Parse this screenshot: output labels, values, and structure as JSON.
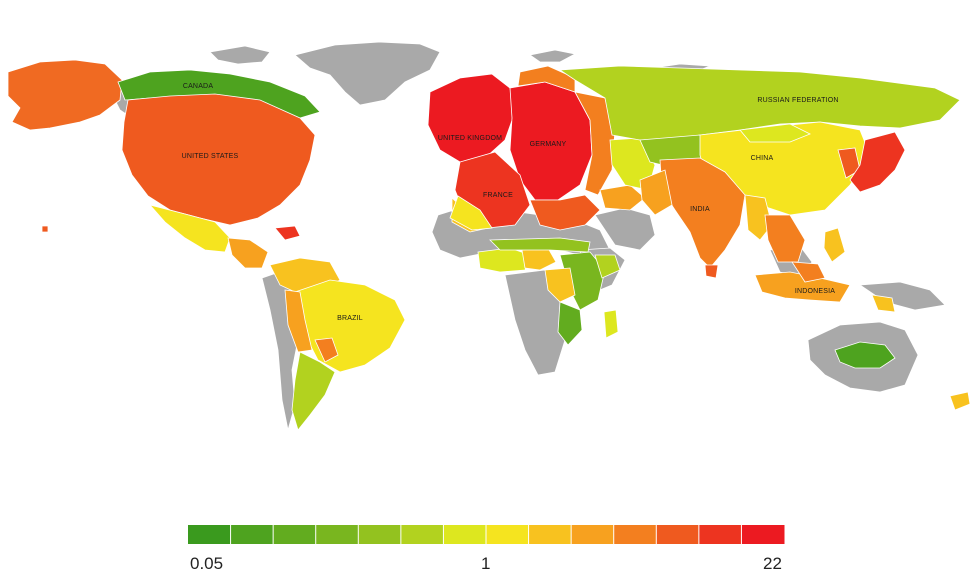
{
  "map": {
    "labels": {
      "canada": "CANADA",
      "united_states": "UNITED STATES",
      "brazil": "BRAZIL",
      "united_kingdom": "UNITED KINGDOM",
      "germany": "GERMANY",
      "france": "FRANCE",
      "russian_federation": "RUSSIAN FEDERATION",
      "china": "CHINA",
      "india": "INDIA",
      "indonesia": "INDONESIA"
    },
    "colors": {
      "no_data": "#a9a9a9",
      "water": "#ffffff"
    }
  },
  "legend": {
    "min_label": "0.05",
    "mid_label": "1",
    "max_label": "22",
    "colors": [
      "#3a9a1e",
      "#4ea31f",
      "#62ac1f",
      "#79b61f",
      "#93c21f",
      "#b2d21f",
      "#dde71f",
      "#f5e41f",
      "#f8c21f",
      "#f7a11f",
      "#f37f1f",
      "#ef5a1f",
      "#ed3420",
      "#ec1a21"
    ]
  }
}
